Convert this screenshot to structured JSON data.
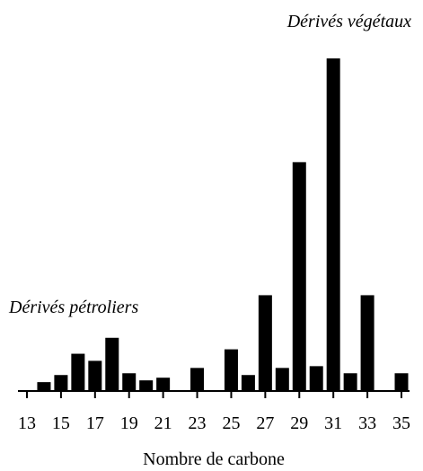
{
  "chart_data": {
    "type": "bar",
    "annotations": [
      "Dérivés végétaux",
      "Dérivés pétroliers"
    ],
    "xlabel": "Nombre de carbone",
    "categories": [
      "13",
      null,
      "15",
      null,
      "17",
      null,
      "19",
      null,
      "21",
      null,
      "23",
      null,
      "25",
      null,
      "27",
      null,
      "29",
      null,
      "31",
      null,
      "33",
      null,
      "35"
    ],
    "values": [
      null,
      10,
      18,
      42,
      34,
      60,
      20,
      12,
      15,
      null,
      26,
      null,
      47,
      18,
      108,
      26,
      258,
      28,
      375,
      20,
      108,
      null,
      20
    ],
    "color": "#000000",
    "ylim": [
      0,
      380
    ]
  }
}
